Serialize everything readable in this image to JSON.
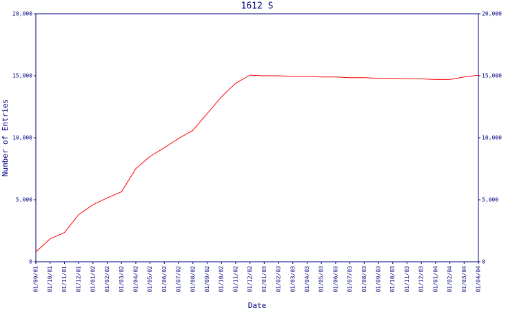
{
  "chart_data": {
    "type": "line",
    "title": "1612 S",
    "x_label": "Date",
    "y_label": "Number of Entries",
    "categories": [
      "01/09/01",
      "01/10/01",
      "01/11/01",
      "01/12/01",
      "01/01/02",
      "01/02/02",
      "01/03/02",
      "01/04/02",
      "01/05/02",
      "01/06/02",
      "01/07/02",
      "01/08/02",
      "01/09/02",
      "01/10/02",
      "01/11/02",
      "01/12/02",
      "01/01/03",
      "01/02/03",
      "01/03/03",
      "01/04/03",
      "01/05/03",
      "01/06/03",
      "01/07/03",
      "01/08/03",
      "01/09/03",
      "01/10/03",
      "01/11/03",
      "01/12/03",
      "01/01/04",
      "01/02/04",
      "01/03/04",
      "01/04/04"
    ],
    "series": [
      {
        "color": "#ff0000",
        "values": [
          800,
          1850,
          2350,
          3800,
          4600,
          5150,
          5650,
          7500,
          8500,
          9200,
          9950,
          10600,
          11950,
          13300,
          14400,
          15050,
          15000,
          15000,
          14950,
          14950,
          14900,
          14900,
          14850,
          14850,
          14800,
          14800,
          14750,
          14750,
          14700,
          14700,
          14900,
          15050
        ]
      }
    ],
    "ylim": [
      0,
      20000
    ],
    "yticks": [
      0,
      {
        "value": 5000,
        "label": "5,000"
      },
      {
        "value": 10000,
        "label": "10,000"
      },
      {
        "value": 15000,
        "label": "15,000"
      },
      {
        "value": 20000,
        "label": "20,000"
      }
    ],
    "axis_color": "#000080"
  }
}
